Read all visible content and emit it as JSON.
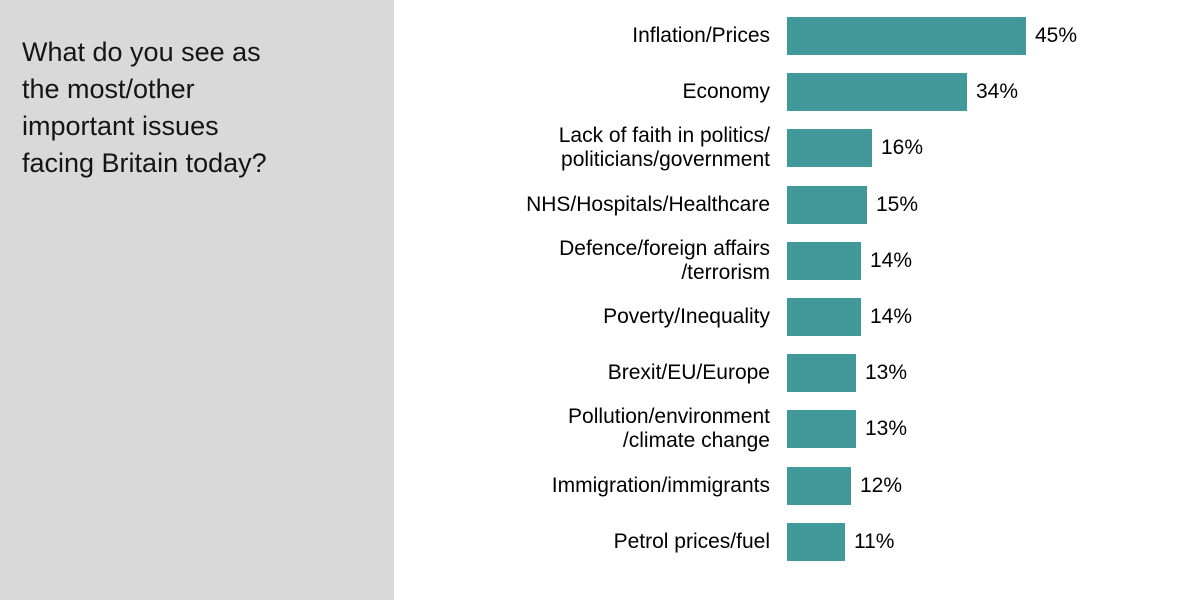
{
  "question": {
    "text": "What do you see as\nthe most/other\nimportant issues\nfacing Britain today?"
  },
  "chart_data": {
    "type": "bar",
    "orientation": "horizontal",
    "title": "What do you see as the most/other important issues facing Britain today?",
    "categories": [
      "Inflation/Prices",
      "Economy",
      "Lack of faith in politics/\npoliticians/government",
      "NHS/Hospitals/Healthcare",
      "Defence/foreign affairs\n/terrorism",
      "Poverty/Inequality",
      "Brexit/EU/Europe",
      "Pollution/environment\n/climate change",
      "Immigration/immigrants",
      "Petrol prices/fuel"
    ],
    "values": [
      45,
      34,
      16,
      15,
      14,
      14,
      13,
      13,
      12,
      11
    ],
    "value_labels": [
      "45%",
      "34%",
      "16%",
      "15%",
      "14%",
      "14%",
      "13%",
      "13%",
      "12%",
      "11%"
    ],
    "unit": "%",
    "xlim": [
      0,
      50
    ],
    "grid": false,
    "legend": false,
    "data_labels": "outside-end",
    "bar_color": "#42999A",
    "panel_color": "#D9D9D9",
    "text_color": "#000000"
  }
}
